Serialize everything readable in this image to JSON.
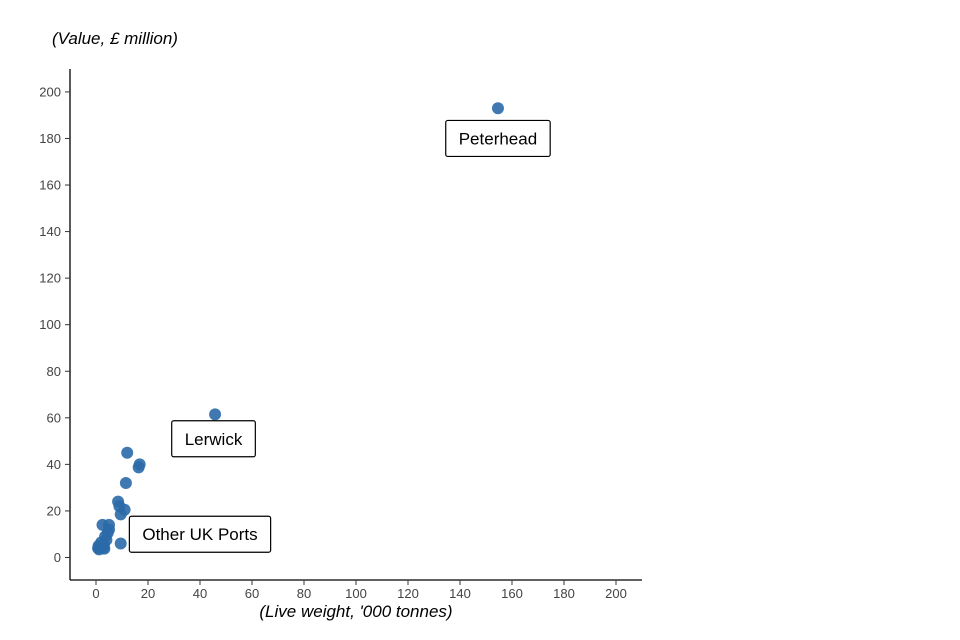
{
  "chart_data": {
    "type": "scatter",
    "xlabel": "(Live weight, '000 tonnes)",
    "ylabel": "(Value, £ million)",
    "xlim": [
      -10,
      210
    ],
    "ylim": [
      -10,
      210
    ],
    "x_ticks": [
      0,
      20,
      40,
      60,
      80,
      100,
      120,
      140,
      160,
      180,
      200
    ],
    "y_ticks": [
      0,
      20,
      40,
      60,
      80,
      100,
      120,
      140,
      160,
      180,
      200
    ],
    "grid": false,
    "colors": {
      "point": "#2b6aa8"
    },
    "points": [
      {
        "x": 154.6,
        "y": 193
      },
      {
        "x": 45.8,
        "y": 61.5
      },
      {
        "x": 12,
        "y": 45
      },
      {
        "x": 16.8,
        "y": 40
      },
      {
        "x": 16.4,
        "y": 38.7
      },
      {
        "x": 11.5,
        "y": 32
      },
      {
        "x": 8.5,
        "y": 24
      },
      {
        "x": 9,
        "y": 22
      },
      {
        "x": 11,
        "y": 20.5
      },
      {
        "x": 9.5,
        "y": 18.5
      },
      {
        "x": 2.5,
        "y": 14
      },
      {
        "x": 5,
        "y": 14
      },
      {
        "x": 5,
        "y": 12
      },
      {
        "x": 4.5,
        "y": 10.5
      },
      {
        "x": 3.5,
        "y": 9
      },
      {
        "x": 4,
        "y": 7.5
      },
      {
        "x": 2,
        "y": 6.5
      },
      {
        "x": 3,
        "y": 5.5
      },
      {
        "x": 9.5,
        "y": 6
      },
      {
        "x": 1,
        "y": 5
      },
      {
        "x": 1.5,
        "y": 4.5
      },
      {
        "x": 0.8,
        "y": 4
      },
      {
        "x": 1.2,
        "y": 3.5
      },
      {
        "x": 2.8,
        "y": 4.2
      },
      {
        "x": 3.2,
        "y": 3.8
      }
    ],
    "annotations": [
      {
        "label": "Peterhead",
        "x": 154.6,
        "y": 180
      },
      {
        "label": "Lerwick",
        "x": 45.2,
        "y": 51
      },
      {
        "label": "Other UK Ports",
        "x": 40,
        "y": 10
      }
    ]
  }
}
